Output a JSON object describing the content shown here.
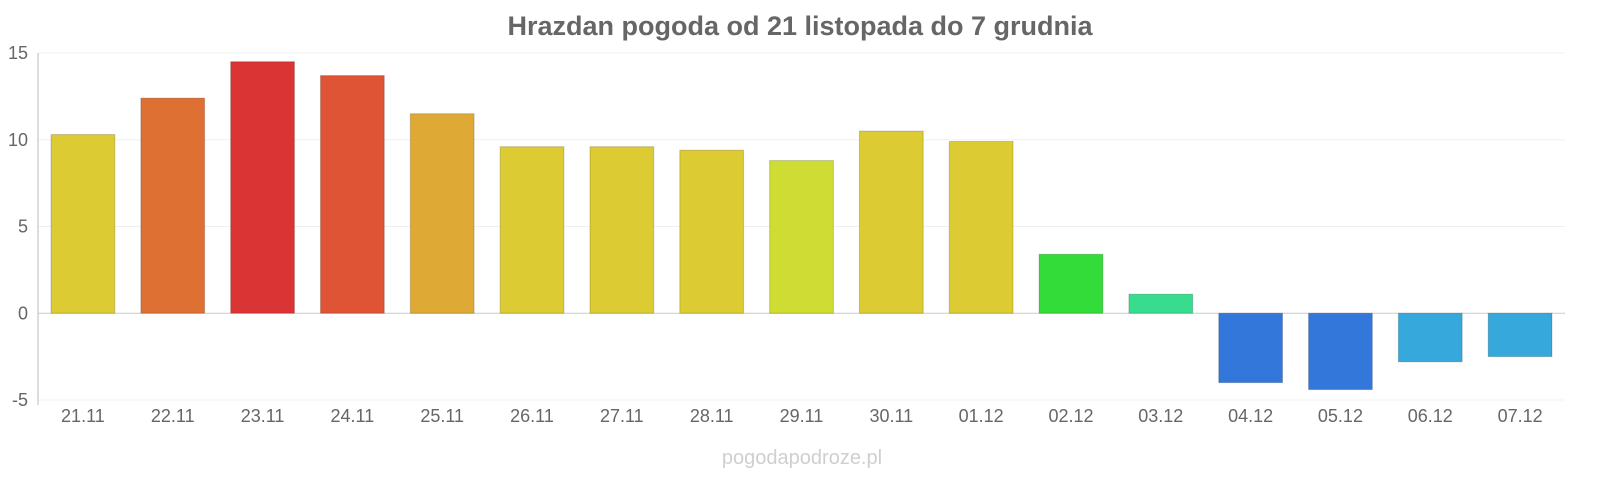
{
  "chart_data": {
    "type": "bar",
    "title": "Hrazdan pogoda od 21 listopada do 7 grudnia",
    "categories": [
      "21.11",
      "22.11",
      "23.11",
      "24.11",
      "25.11",
      "26.11",
      "27.11",
      "28.11",
      "29.11",
      "30.11",
      "01.12",
      "02.12",
      "03.12",
      "04.12",
      "05.12",
      "06.12",
      "07.12"
    ],
    "values": [
      10.3,
      12.4,
      14.5,
      13.7,
      11.5,
      9.6,
      9.6,
      9.4,
      8.8,
      10.5,
      9.9,
      3.4,
      1.1,
      -4.0,
      -4.4,
      -2.8,
      -2.5
    ],
    "colors": [
      "#dccb33",
      "#de7033",
      "#db3434",
      "#de5434",
      "#dea934",
      "#dccb33",
      "#dccb33",
      "#dccb33",
      "#cfdc33",
      "#dccb33",
      "#dccb33",
      "#34dc3a",
      "#37dc8e",
      "#3477db",
      "#3477db",
      "#36a8db",
      "#36a8db"
    ],
    "ylim": [
      -5,
      15
    ],
    "yticks": [
      15,
      10,
      5,
      0,
      -5
    ],
    "grid": true,
    "xlabel": "",
    "ylabel": ""
  },
  "watermark": "pogodapodroze.pl"
}
